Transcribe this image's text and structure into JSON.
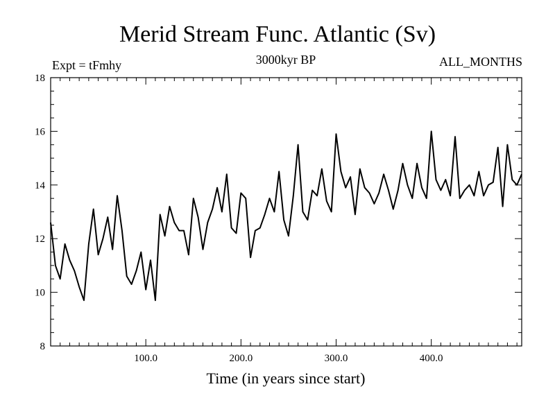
{
  "chart_data": {
    "type": "line",
    "title": "Merid Stream Func. Atlantic (Sv)",
    "subtitle": "3000kyr BP",
    "expt_label": "Expt = tFmhy",
    "months_label": "ALL_MONTHS",
    "xlabel": "Time (in years since start)",
    "ylabel": "",
    "xlim": [
      0,
      495
    ],
    "ylim": [
      8,
      18
    ],
    "xticks": [
      100,
      200,
      300,
      400
    ],
    "xtick_labels": [
      "100.0",
      "200.0",
      "300.0",
      "400.0"
    ],
    "yticks": [
      8,
      10,
      12,
      14,
      16,
      18
    ],
    "ytick_labels": [
      "8",
      "10",
      "12",
      "14",
      "16",
      "18"
    ],
    "series": [
      {
        "name": "Merid Stream Func. Atlantic",
        "x_start": 0,
        "x_step": 5,
        "values": [
          12.6,
          11.0,
          10.5,
          11.8,
          11.2,
          10.8,
          10.2,
          9.7,
          11.8,
          13.1,
          11.4,
          12.0,
          12.8,
          11.6,
          13.6,
          12.3,
          10.6,
          10.3,
          10.8,
          11.5,
          10.1,
          11.2,
          9.7,
          12.9,
          12.1,
          13.2,
          12.6,
          12.3,
          12.3,
          11.4,
          13.5,
          12.8,
          11.6,
          12.6,
          13.1,
          13.9,
          13.0,
          14.4,
          12.4,
          12.2,
          13.7,
          13.5,
          11.3,
          12.3,
          12.4,
          12.9,
          13.5,
          13.0,
          14.5,
          12.7,
          12.1,
          13.6,
          15.5,
          13.0,
          12.7,
          13.8,
          13.6,
          14.6,
          13.4,
          13.0,
          15.9,
          14.5,
          13.9,
          14.3,
          12.9,
          14.6,
          13.9,
          13.7,
          13.3,
          13.7,
          14.4,
          13.8,
          13.1,
          13.8,
          14.8,
          14.0,
          13.5,
          14.8,
          13.9,
          13.5,
          16.0,
          14.2,
          13.8,
          14.2,
          13.6,
          15.8,
          13.5,
          13.8,
          14.0,
          13.6,
          14.5,
          13.6,
          14.0,
          14.1,
          15.4,
          13.2,
          15.5,
          14.2,
          14.0,
          14.4
        ]
      }
    ]
  }
}
